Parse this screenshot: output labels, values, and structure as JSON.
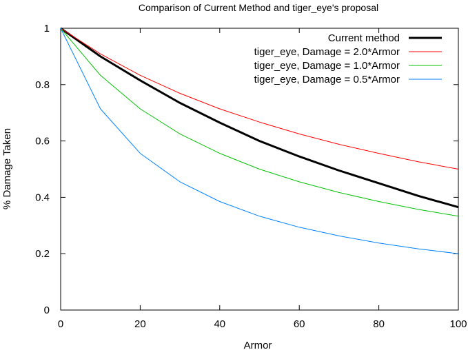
{
  "chart_data": {
    "type": "line",
    "title": "Comparison of Current Method and tiger_eye's proposal",
    "xlabel": "Armor",
    "ylabel": "% Damage Taken",
    "xlim": [
      0,
      100
    ],
    "ylim": [
      0,
      1
    ],
    "xticks": [
      0,
      20,
      40,
      60,
      80,
      100
    ],
    "yticks": [
      0,
      0.2,
      0.4,
      0.6,
      0.8,
      1
    ],
    "x": [
      0,
      10,
      20,
      30,
      40,
      50,
      60,
      70,
      80,
      90,
      100
    ],
    "series": [
      {
        "name": "Current method",
        "color": "#000000",
        "width": "thick",
        "values": [
          1.0,
          0.9,
          0.815,
          0.735,
          0.665,
          0.6,
          0.545,
          0.495,
          0.45,
          0.405,
          0.365
        ]
      },
      {
        "name": "tiger_eye, Damage = 2.0*Armor",
        "color": "#ff0000",
        "width": "thin",
        "values": [
          1.0,
          0.909,
          0.833,
          0.769,
          0.714,
          0.667,
          0.625,
          0.588,
          0.556,
          0.526,
          0.5
        ]
      },
      {
        "name": "tiger_eye, Damage = 1.0*Armor",
        "color": "#00c000",
        "width": "thin",
        "values": [
          1.0,
          0.833,
          0.714,
          0.625,
          0.556,
          0.5,
          0.455,
          0.417,
          0.385,
          0.357,
          0.333
        ]
      },
      {
        "name": "tiger_eye, Damage = 0.5*Armor",
        "color": "#0080ff",
        "width": "thin",
        "values": [
          1.0,
          0.714,
          0.556,
          0.455,
          0.385,
          0.333,
          0.294,
          0.263,
          0.238,
          0.217,
          0.2
        ]
      }
    ],
    "legend": "top-right",
    "grid": false
  }
}
